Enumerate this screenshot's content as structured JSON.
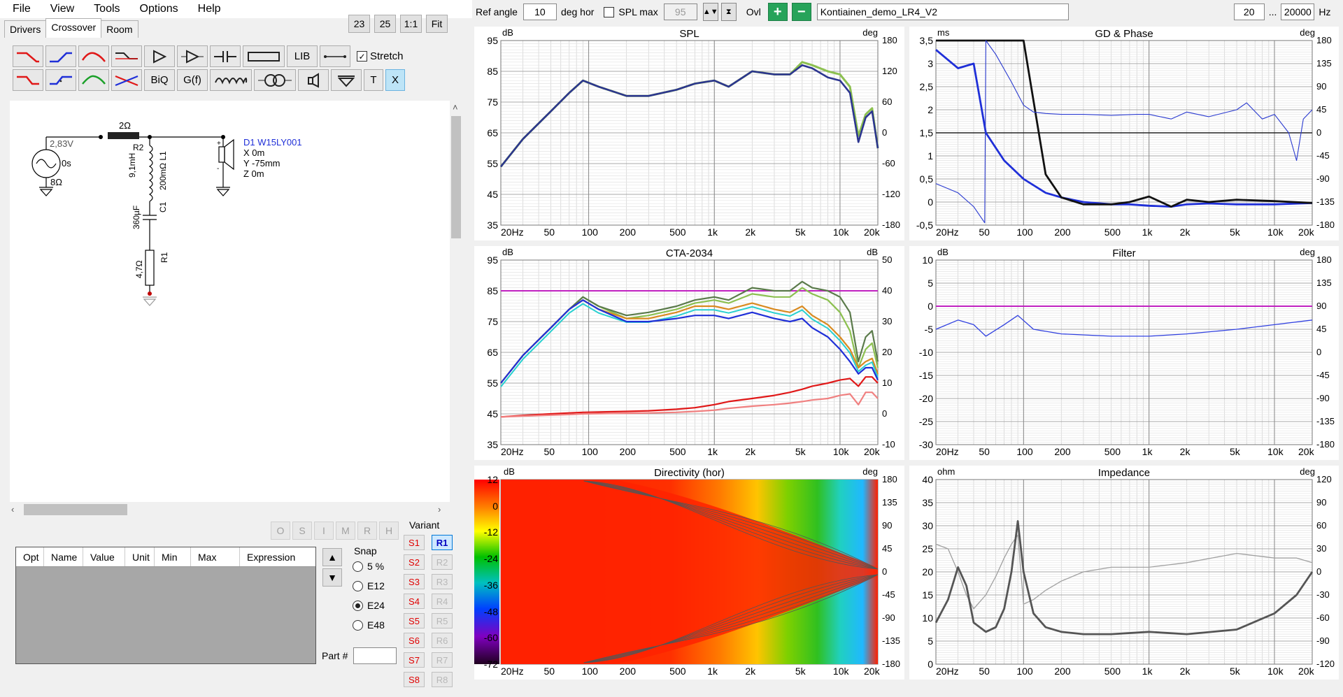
{
  "menu": [
    "File",
    "View",
    "Tools",
    "Options",
    "Help"
  ],
  "tabs": [
    "Drivers",
    "Crossover",
    "Room"
  ],
  "zoom_buttons": [
    "23",
    "25",
    "1:1",
    "Fit"
  ],
  "toolbar": {
    "lib_label": "LIB",
    "biq_label": "BiQ",
    "gf_label": "G(f)",
    "t_label": "T",
    "x_label": "X",
    "stretch_label": "Stretch",
    "stretch_checked": true
  },
  "schematic": {
    "source_voltage": "2,83V",
    "source_delay": "0s",
    "source_impedance": "8Ω",
    "series_resistor": "2Ω",
    "r2_label": "R2",
    "l1_value": "9,1mH",
    "l1_resistance": "200mΩ L1",
    "c1_label": "C1",
    "c1_value": "360µF",
    "r1_label": "R1",
    "r1_value": "4,7Ω",
    "driver_name": "D1 W15LY001",
    "driver_x": "X 0m",
    "driver_y": "Y -75mm",
    "driver_z": "Z 0m"
  },
  "opt_buttons": [
    "O",
    "S",
    "I",
    "M",
    "R",
    "H"
  ],
  "param_table": {
    "columns": [
      "Opt",
      "Name",
      "Value",
      "Unit",
      "Min",
      "Max",
      "Expression"
    ]
  },
  "snap": {
    "title": "Snap",
    "options": [
      "5 %",
      "E12",
      "E24",
      "E48"
    ],
    "selected": "E24"
  },
  "part_label": "Part #",
  "variant": {
    "title": "Variant",
    "s_buttons": [
      "S1",
      "S2",
      "S3",
      "S4",
      "S5",
      "S6",
      "S7",
      "S8"
    ],
    "r_buttons": [
      "R1",
      "R2",
      "R3",
      "R4",
      "R5",
      "R6",
      "R7",
      "R8"
    ],
    "active": "R1"
  },
  "topbar": {
    "ref_angle_label": "Ref angle",
    "ref_angle_value": "10",
    "deg_hor_label": "deg hor",
    "spl_max_label": "SPL max",
    "spl_max_value": "95",
    "ovl_label": "Ovl",
    "project_name": "Kontiainen_demo_LR4_V2",
    "freq_min": "20",
    "freq_max": "20000",
    "hz_label": "Hz",
    "dots": "..."
  },
  "colors": {
    "grid": "#b4b4b4",
    "plum": "#c020c0",
    "blue": "#1f2fd8",
    "red": "#e01818",
    "orange": "#d98a20",
    "cyan": "#28d0d0",
    "green": "#8cc050",
    "darkgreen": "#5a7a4a",
    "navy": "#2c3590"
  },
  "x_ticks": [
    "20Hz",
    "50",
    "100",
    "200",
    "500",
    "1k",
    "2k",
    "5k",
    "10k",
    "20k"
  ],
  "graphs": {
    "spl": {
      "title": "SPL",
      "unit_left": "dB",
      "unit_right": "deg",
      "left_ticks": [
        "95",
        "85",
        "75",
        "65",
        "55",
        "45",
        "35"
      ],
      "right_ticks": [
        "180",
        "120",
        "60",
        "0",
        "-60",
        "-120",
        "-180"
      ]
    },
    "gd": {
      "title": "GD & Phase",
      "unit_left": "ms",
      "unit_right": "deg",
      "left_ticks": [
        "3,5",
        "3",
        "2,5",
        "2",
        "1,5",
        "1",
        "0,5",
        "0",
        "-0,5"
      ],
      "right_ticks": [
        "180",
        "135",
        "90",
        "45",
        "0",
        "-45",
        "-90",
        "-135",
        "-180"
      ]
    },
    "cta": {
      "title": "CTA-2034",
      "unit_left": "dB",
      "unit_right": "dB",
      "left_ticks": [
        "95",
        "85",
        "75",
        "65",
        "55",
        "45",
        "35"
      ],
      "right_ticks": [
        "50",
        "40",
        "30",
        "20",
        "10",
        "0",
        "-10"
      ]
    },
    "filter": {
      "title": "Filter",
      "unit_left": "dB",
      "unit_right": "deg",
      "left_ticks": [
        "10",
        "5",
        "0",
        "-5",
        "-10",
        "-15",
        "-20",
        "-25",
        "-30"
      ],
      "right_ticks": [
        "180",
        "135",
        "90",
        "45",
        "0",
        "-45",
        "-90",
        "-135",
        "-180"
      ]
    },
    "dir": {
      "title": "Directivity (hor)",
      "unit_left": "dB",
      "unit_right": "deg",
      "left_ticks": [
        "12",
        "0",
        "-12",
        "-24",
        "-36",
        "-48",
        "-60",
        "-72"
      ],
      "right_ticks": [
        "180",
        "135",
        "90",
        "45",
        "0",
        "-45",
        "-90",
        "-135",
        "-180"
      ]
    },
    "imp": {
      "title": "Impedance",
      "unit_left": "ohm",
      "unit_right": "deg",
      "left_ticks": [
        "40",
        "35",
        "30",
        "25",
        "20",
        "15",
        "10",
        "5",
        "0"
      ],
      "right_ticks": [
        "120",
        "90",
        "60",
        "30",
        "0",
        "-30",
        "-60",
        "-90",
        "-120"
      ]
    }
  },
  "chart_data": [
    {
      "type": "line",
      "title": "SPL",
      "xscale": "log",
      "xlim": [
        20,
        20000
      ],
      "ylim": [
        35,
        95
      ],
      "xlabel": "",
      "ylabel": "dB",
      "x": [
        20,
        30,
        50,
        70,
        90,
        120,
        200,
        300,
        500,
        700,
        1000,
        1300,
        2000,
        3000,
        4000,
        5000,
        6000,
        8000,
        10000,
        12000,
        14000,
        16000,
        18000,
        20000
      ],
      "series": [
        {
          "values": [
            54,
            63,
            72,
            78,
            82,
            80,
            77,
            77,
            79,
            81,
            82,
            80,
            85,
            84,
            84,
            87,
            86,
            83,
            82,
            78,
            62,
            70,
            72,
            60
          ]
        },
        {
          "values": [
            54,
            63,
            72,
            78,
            82,
            80,
            77,
            77,
            79,
            81,
            82,
            80,
            85,
            84,
            84,
            88,
            87,
            85,
            84,
            80,
            64,
            71,
            73,
            60
          ]
        }
      ]
    },
    {
      "type": "line",
      "title": "CTA-2034",
      "xscale": "log",
      "xlim": [
        20,
        20000
      ],
      "ylim": [
        35,
        95
      ],
      "x": [
        20,
        30,
        50,
        70,
        90,
        120,
        200,
        300,
        500,
        700,
        1000,
        1300,
        2000,
        3000,
        4000,
        5000,
        6000,
        8000,
        10000,
        12000,
        14000,
        16000,
        18000,
        20000
      ],
      "series": [
        {
          "values": [
            55,
            64,
            73,
            79,
            83,
            80,
            77,
            78,
            80,
            82,
            83,
            82,
            86,
            85,
            85,
            88,
            86,
            85,
            83,
            78,
            62,
            70,
            72,
            62
          ]
        },
        {
          "values": [
            55,
            64,
            73,
            79,
            83,
            80,
            76,
            77,
            79,
            81,
            82,
            81,
            84,
            83,
            83,
            86,
            84,
            82,
            78,
            72,
            60,
            66,
            68,
            60
          ]
        },
        {
          "values": [
            55,
            64,
            73,
            79,
            82,
            79,
            76,
            76,
            78,
            80,
            80,
            79,
            81,
            79,
            78,
            80,
            77,
            74,
            70,
            66,
            60,
            62,
            63,
            58
          ]
        },
        {
          "values": [
            55,
            64,
            73,
            79,
            82,
            79,
            75,
            75,
            76,
            77,
            77,
            76,
            78,
            76,
            75,
            76,
            73,
            70,
            66,
            62,
            58,
            60,
            60,
            56
          ]
        },
        {
          "values": [
            44,
            44.5,
            45,
            45.3,
            45.5,
            45.6,
            45.8,
            46,
            46.5,
            47,
            48,
            49,
            50,
            51,
            52,
            53,
            54,
            55,
            56,
            56.5,
            54,
            57,
            57,
            55
          ]
        },
        {
          "values": [
            44,
            44.3,
            44.6,
            44.8,
            45,
            45.1,
            45.2,
            45.3,
            45.5,
            45.8,
            46.2,
            46.8,
            47.5,
            48,
            48.5,
            49,
            49.5,
            50,
            51,
            51.5,
            48,
            52,
            52,
            50
          ]
        }
      ],
      "reference_line": 85
    },
    {
      "type": "line",
      "title": "GD & Phase",
      "xscale": "log",
      "xlim": [
        20,
        20000
      ],
      "ylim": [
        -0.5,
        3.5
      ],
      "x": [
        20,
        30,
        40,
        50,
        70,
        100,
        150,
        200,
        300,
        500,
        700,
        1000,
        1500,
        2000,
        3000,
        5000,
        10000,
        20000
      ],
      "series": [
        {
          "values": [
            3.3,
            2.9,
            3.0,
            1.5,
            0.9,
            0.5,
            0.2,
            0.1,
            0.0,
            -0.05,
            -0.05,
            -0.08,
            -0.1,
            -0.05,
            -0.03,
            -0.05,
            -0.05,
            -0.02
          ]
        },
        {
          "values": [
            3.5,
            3.5,
            3.5,
            3.5,
            3.5,
            3.5,
            0.6,
            0.1,
            -0.05,
            -0.05,
            0.0,
            0.12,
            -0.1,
            0.05,
            0.0,
            0.05,
            0.02,
            -0.02
          ]
        }
      ]
    },
    {
      "type": "line",
      "title": "Filter",
      "xscale": "log",
      "xlim": [
        20,
        20000
      ],
      "ylim": [
        -30,
        10
      ],
      "x": [
        20,
        30,
        40,
        50,
        70,
        90,
        120,
        200,
        500,
        1000,
        2000,
        5000,
        10000,
        20000
      ],
      "series": [
        {
          "values": [
            -5,
            -3,
            -4,
            -6.5,
            -4,
            -2,
            -5,
            -6,
            -6.5,
            -6.5,
            -6,
            -5,
            -4,
            -3
          ]
        },
        {
          "values": [
            0,
            0,
            0,
            0,
            0,
            0,
            0,
            0,
            0,
            0,
            0,
            0,
            0,
            0
          ]
        }
      ]
    },
    {
      "type": "line",
      "title": "Impedance",
      "xscale": "log",
      "xlim": [
        20,
        20000
      ],
      "ylim": [
        0,
        40
      ],
      "x": [
        20,
        25,
        30,
        35,
        40,
        50,
        60,
        70,
        80,
        90,
        100,
        120,
        150,
        200,
        300,
        500,
        1000,
        2000,
        5000,
        10000,
        15000,
        20000
      ],
      "series": [
        {
          "values": [
            9,
            14,
            21,
            17,
            9,
            7,
            8,
            12,
            20,
            31,
            20,
            11,
            8,
            7,
            6.5,
            6.5,
            7,
            6.5,
            7.5,
            11,
            15,
            20
          ]
        },
        {
          "values": [
            26,
            25,
            20,
            15,
            12,
            15,
            19,
            23,
            26,
            28,
            13,
            14,
            16,
            18,
            20,
            21,
            21,
            22,
            24,
            23,
            23,
            22
          ]
        }
      ]
    },
    {
      "type": "heatmap",
      "title": "Directivity (hor)",
      "xscale": "log",
      "xlim": [
        20,
        20000
      ],
      "ylim": [
        -180,
        180
      ],
      "color_range": [
        -72,
        12
      ]
    }
  ]
}
